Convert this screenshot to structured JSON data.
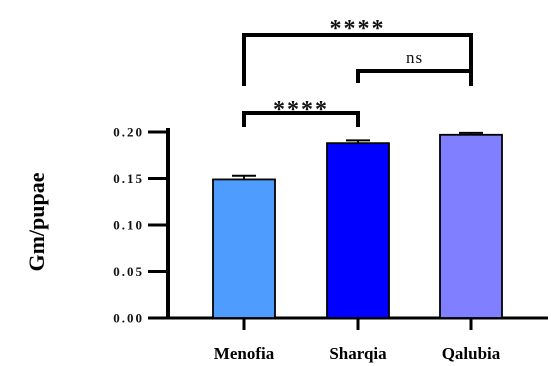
{
  "chart_data": {
    "type": "bar",
    "title": "",
    "xlabel": "",
    "ylabel": "Gm/pupae",
    "ylim": [
      0,
      0.2
    ],
    "yticks": [
      "0.00",
      "0.05",
      "0.10",
      "0.15",
      "0.20"
    ],
    "categories": [
      "Menofia",
      "Sharqia",
      "Qalubia"
    ],
    "values": [
      0.149,
      0.188,
      0.197
    ],
    "errors": [
      0.004,
      0.003,
      0.002
    ],
    "bar_colors": [
      "#4f9cff",
      "#0000ff",
      "#7f7fff"
    ],
    "grid": false,
    "legend": "none",
    "significance": [
      {
        "from": "Menofia",
        "to": "Sharqia",
        "label": "****"
      },
      {
        "from": "Sharqia",
        "to": "Qalubia",
        "label": "ns"
      },
      {
        "from": "Menofia",
        "to": "Qalubia",
        "label": "****"
      }
    ]
  }
}
